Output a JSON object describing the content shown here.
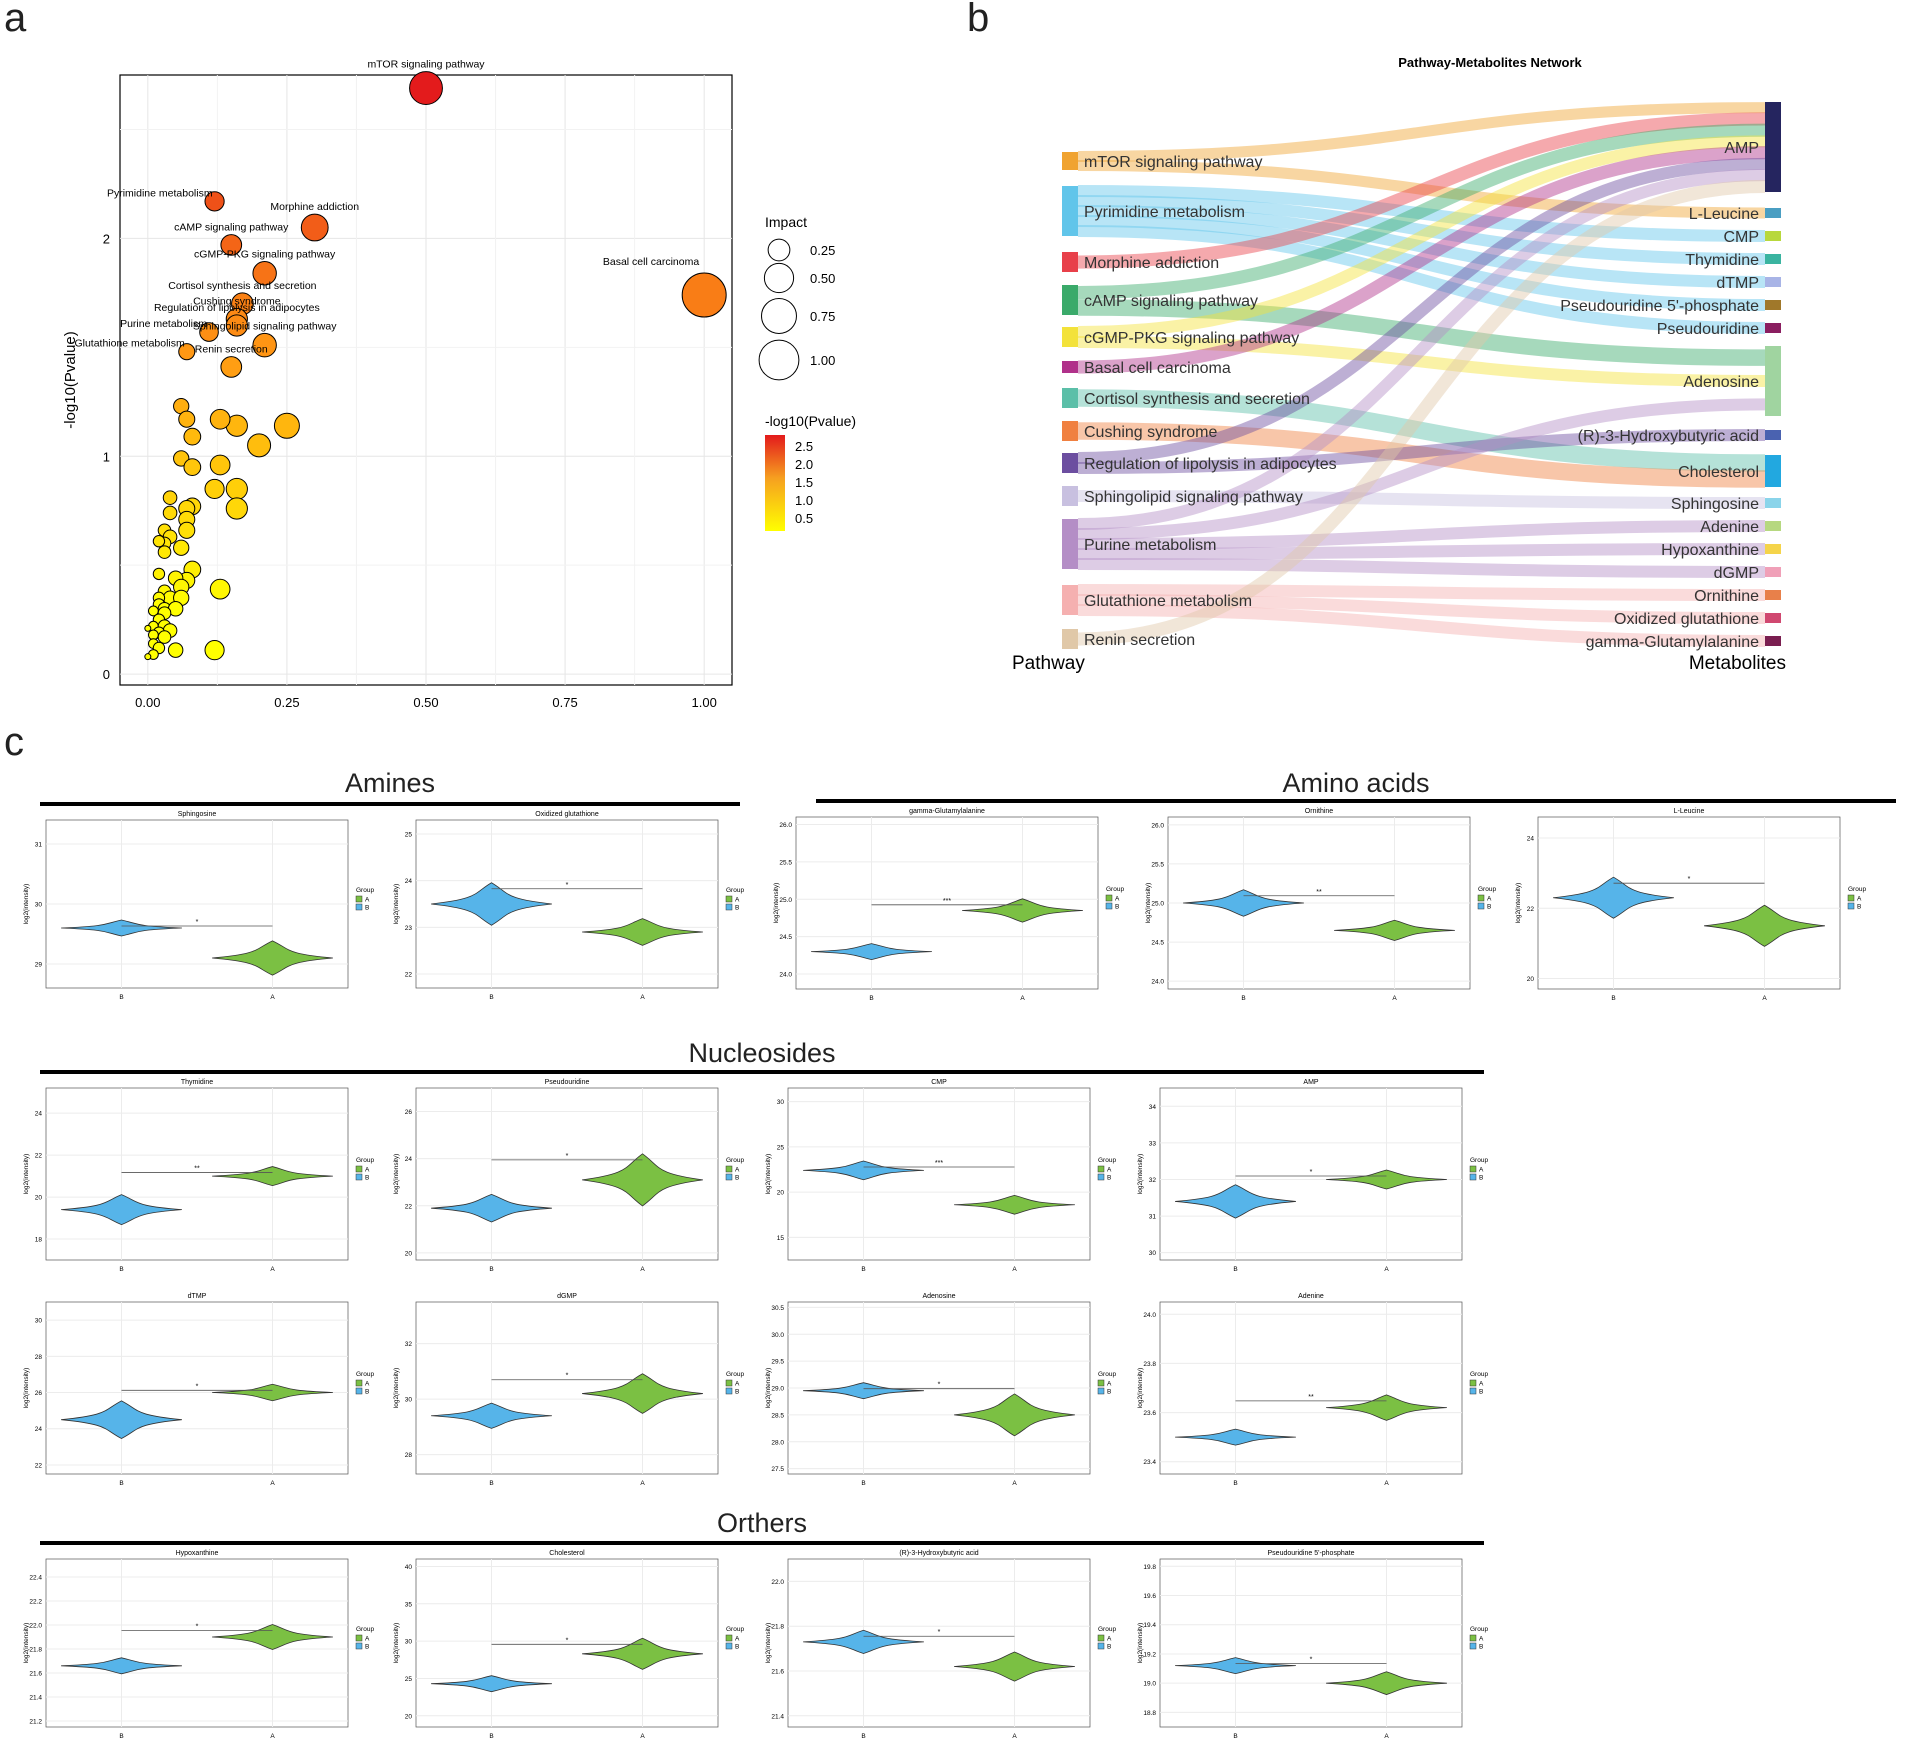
{
  "panels": {
    "a": {
      "letter": "a"
    },
    "b": {
      "letter": "b"
    },
    "c": {
      "letter": "c"
    }
  },
  "sections": {
    "amines": "Amines",
    "amino_acids": "Amino acids",
    "nucleosides": "Nucleosides",
    "others": "Orthers"
  },
  "colors": {
    "group_A": "#7bc043",
    "group_B": "#56b4e9",
    "impact_low": "#ffff00",
    "impact_high": "#e31a1c"
  },
  "chart_data": [
    {
      "id": "bubble",
      "type": "scatter",
      "xlabel": "Pathway Impact",
      "ylabel": "-log10(Pvalue)",
      "xlim": [
        -0.05,
        1.05
      ],
      "ylim": [
        -0.05,
        2.75
      ],
      "xticks": [
        "0.00",
        "0.25",
        "0.50",
        "0.75",
        "1.00"
      ],
      "yticks": [
        "0",
        "1",
        "2"
      ],
      "legend_size_title": "Impact",
      "legend_size_labels": [
        "0.25",
        "0.50",
        "0.75",
        "1.00"
      ],
      "legend_color_title": "-log10(Pvalue)",
      "legend_color_labels": [
        "2.5",
        "2.0",
        "1.5",
        "1.0",
        "0.5"
      ],
      "labeled_points": [
        {
          "label": "mTOR signaling pathway",
          "x": 0.5,
          "y": 2.69
        },
        {
          "label": "Basal cell carcinoma",
          "x": 1.0,
          "y": 1.74
        },
        {
          "label": "Morphine addiction",
          "x": 0.3,
          "y": 2.05
        },
        {
          "label": "Pyrimidine metabolism",
          "x": 0.12,
          "y": 2.17
        },
        {
          "label": "cAMP signaling pathway",
          "x": 0.15,
          "y": 1.97
        },
        {
          "label": "cGMP-PKG signaling pathway",
          "x": 0.21,
          "y": 1.84
        },
        {
          "label": "Cortisol synthesis and secretion",
          "x": 0.17,
          "y": 1.7
        },
        {
          "label": "Cushing syndrome",
          "x": 0.16,
          "y": 1.63
        },
        {
          "label": "Regulation of lipolysis in adipocytes",
          "x": 0.16,
          "y": 1.6
        },
        {
          "label": "Sphingolipid signaling pathway",
          "x": 0.21,
          "y": 1.51
        },
        {
          "label": "Purine metabolism",
          "x": 0.11,
          "y": 1.57
        },
        {
          "label": "Glutathione metabolism",
          "x": 0.07,
          "y": 1.48
        },
        {
          "label": "Renin secretion",
          "x": 0.15,
          "y": 1.41
        }
      ],
      "other_points": [
        {
          "x": 0.25,
          "y": 1.14
        },
        {
          "x": 0.2,
          "y": 1.05
        },
        {
          "x": 0.16,
          "y": 1.14
        },
        {
          "x": 0.13,
          "y": 1.17
        },
        {
          "x": 0.06,
          "y": 1.23
        },
        {
          "x": 0.07,
          "y": 1.17
        },
        {
          "x": 0.08,
          "y": 1.09
        },
        {
          "x": 0.13,
          "y": 0.96
        },
        {
          "x": 0.06,
          "y": 0.99
        },
        {
          "x": 0.08,
          "y": 0.95
        },
        {
          "x": 0.16,
          "y": 0.85
        },
        {
          "x": 0.12,
          "y": 0.85
        },
        {
          "x": 0.16,
          "y": 0.76
        },
        {
          "x": 0.08,
          "y": 0.77
        },
        {
          "x": 0.04,
          "y": 0.81
        },
        {
          "x": 0.07,
          "y": 0.76
        },
        {
          "x": 0.04,
          "y": 0.74
        },
        {
          "x": 0.07,
          "y": 0.71
        },
        {
          "x": 0.03,
          "y": 0.66
        },
        {
          "x": 0.07,
          "y": 0.66
        },
        {
          "x": 0.04,
          "y": 0.63
        },
        {
          "x": 0.03,
          "y": 0.6
        },
        {
          "x": 0.02,
          "y": 0.61
        },
        {
          "x": 0.06,
          "y": 0.58
        },
        {
          "x": 0.03,
          "y": 0.56
        },
        {
          "x": 0.08,
          "y": 0.48
        },
        {
          "x": 0.07,
          "y": 0.43
        },
        {
          "x": 0.02,
          "y": 0.46
        },
        {
          "x": 0.05,
          "y": 0.44
        },
        {
          "x": 0.06,
          "y": 0.4
        },
        {
          "x": 0.13,
          "y": 0.39
        },
        {
          "x": 0.03,
          "y": 0.38
        },
        {
          "x": 0.04,
          "y": 0.35
        },
        {
          "x": 0.06,
          "y": 0.35
        },
        {
          "x": 0.02,
          "y": 0.35
        },
        {
          "x": 0.02,
          "y": 0.32
        },
        {
          "x": 0.03,
          "y": 0.3
        },
        {
          "x": 0.05,
          "y": 0.3
        },
        {
          "x": 0.01,
          "y": 0.29
        },
        {
          "x": 0.03,
          "y": 0.28
        },
        {
          "x": 0.02,
          "y": 0.25
        },
        {
          "x": 0.01,
          "y": 0.22
        },
        {
          "x": 0.03,
          "y": 0.22
        },
        {
          "x": 0.04,
          "y": 0.2
        },
        {
          "x": 0.02,
          "y": 0.19
        },
        {
          "x": 0.0,
          "y": 0.21
        },
        {
          "x": 0.01,
          "y": 0.18
        },
        {
          "x": 0.03,
          "y": 0.17
        },
        {
          "x": 0.01,
          "y": 0.14
        },
        {
          "x": 0.02,
          "y": 0.12
        },
        {
          "x": 0.01,
          "y": 0.09
        },
        {
          "x": 0.0,
          "y": 0.08
        },
        {
          "x": 0.05,
          "y": 0.11
        },
        {
          "x": 0.12,
          "y": 0.11
        }
      ]
    },
    {
      "id": "sankey",
      "type": "sankey",
      "title": "Pathway-Metabolites Network",
      "left_axis_label": "Pathway",
      "right_axis_label": "Metabolites",
      "pathways": [
        {
          "name": "mTOR signaling pathway",
          "color": "#f0a330"
        },
        {
          "name": "Pyrimidine metabolism",
          "color": "#61c5ea"
        },
        {
          "name": "Morphine addiction",
          "color": "#e8404a"
        },
        {
          "name": "cAMP signaling pathway",
          "color": "#3aaa6a"
        },
        {
          "name": "cGMP-PKG signaling pathway",
          "color": "#f3e23a"
        },
        {
          "name": "Basal cell carcinoma",
          "color": "#b0318a"
        },
        {
          "name": "Cortisol synthesis and secretion",
          "color": "#5bbfa8"
        },
        {
          "name": "Cushing syndrome",
          "color": "#f08040"
        },
        {
          "name": "Regulation of lipolysis in adipocytes",
          "color": "#6c4ea0"
        },
        {
          "name": "Sphingolipid signaling pathway",
          "color": "#c8c0e0"
        },
        {
          "name": "Purine metabolism",
          "color": "#b48ec6"
        },
        {
          "name": "Glutathione metabolism",
          "color": "#f5b0b0"
        },
        {
          "name": "Renin secretion",
          "color": "#e0c8a8"
        }
      ],
      "metabolites": [
        {
          "name": "AMP",
          "color": "#25255f"
        },
        {
          "name": "L-Leucine",
          "color": "#4a9ec2"
        },
        {
          "name": "CMP",
          "color": "#b8d83c"
        },
        {
          "name": "Thymidine",
          "color": "#3ab4a0"
        },
        {
          "name": "dTMP",
          "color": "#a8b4e6"
        },
        {
          "name": "Pseudouridine 5'-phosphate",
          "color": "#a0782a"
        },
        {
          "name": "Pseudouridine",
          "color": "#8a1e60"
        },
        {
          "name": "Adenosine",
          "color": "#a0d4a0"
        },
        {
          "name": "(R)-3-Hydroxybutyric acid",
          "color": "#4a62b0"
        },
        {
          "name": "Cholesterol",
          "color": "#22a8e0"
        },
        {
          "name": "Sphingosine",
          "color": "#8ad4ea"
        },
        {
          "name": "Adenine",
          "color": "#b6d880"
        },
        {
          "name": "Hypoxanthine",
          "color": "#f5d44a"
        },
        {
          "name": "dGMP",
          "color": "#f0a0b8"
        },
        {
          "name": "Ornithine",
          "color": "#e8804a"
        },
        {
          "name": "Oxidized glutathione",
          "color": "#d04870"
        },
        {
          "name": "gamma-Glutamylalanine",
          "color": "#7a1e50"
        }
      ],
      "links": [
        [
          0,
          0
        ],
        [
          0,
          1
        ],
        [
          1,
          2
        ],
        [
          1,
          3
        ],
        [
          1,
          4
        ],
        [
          1,
          5
        ],
        [
          1,
          6
        ],
        [
          2,
          0
        ],
        [
          3,
          0
        ],
        [
          3,
          7
        ],
        [
          4,
          0
        ],
        [
          4,
          7
        ],
        [
          5,
          0
        ],
        [
          6,
          9
        ],
        [
          7,
          9
        ],
        [
          8,
          0
        ],
        [
          8,
          8
        ],
        [
          9,
          10
        ],
        [
          10,
          0
        ],
        [
          10,
          7
        ],
        [
          10,
          11
        ],
        [
          10,
          12
        ],
        [
          10,
          13
        ],
        [
          11,
          14
        ],
        [
          11,
          15
        ],
        [
          11,
          16
        ],
        [
          12,
          0
        ]
      ]
    },
    {
      "id": "v-sphingosine",
      "type": "violin",
      "title": "Sphingosine",
      "categories": [
        "B",
        "A"
      ],
      "ylabel": "log2(intensity)",
      "yticks": [
        "29",
        "30",
        "31"
      ],
      "ylim": [
        28.6,
        31.4
      ],
      "centers": [
        29.6,
        29.1
      ],
      "spread": [
        0.1,
        0.22
      ],
      "significance": "*",
      "legend_title": "Group",
      "legend_labels": [
        "A",
        "B"
      ]
    },
    {
      "id": "v-oxglut",
      "type": "violin",
      "title": "Oxidized glutathione",
      "categories": [
        "B",
        "A"
      ],
      "ylabel": "log2(intensity)",
      "yticks": [
        "22",
        "23",
        "24",
        "25"
      ],
      "ylim": [
        21.7,
        25.3
      ],
      "centers": [
        23.5,
        22.9
      ],
      "spread": [
        0.35,
        0.22
      ],
      "significance": "*",
      "legend_title": "Group",
      "legend_labels": [
        "A",
        "B"
      ]
    },
    {
      "id": "v-gglu",
      "type": "violin",
      "title": "gamma-Glutamylalanine",
      "categories": [
        "B",
        "A"
      ],
      "ylabel": "log2(intensity)",
      "yticks": [
        "24.0",
        "24.5",
        "25.0",
        "25.5",
        "26.0"
      ],
      "ylim": [
        23.8,
        26.1
      ],
      "centers": [
        24.3,
        24.85
      ],
      "spread": [
        0.05,
        0.12
      ],
      "significance": "***",
      "legend_title": "Group",
      "legend_labels": [
        "A",
        "B"
      ]
    },
    {
      "id": "v-ornithine",
      "type": "violin",
      "title": "Ornithine",
      "categories": [
        "B",
        "A"
      ],
      "ylabel": "log2(intensity)",
      "yticks": [
        "24.0",
        "24.5",
        "25.0",
        "25.5",
        "26.0"
      ],
      "ylim": [
        23.9,
        26.1
      ],
      "centers": [
        25.0,
        24.65
      ],
      "spread": [
        0.13,
        0.1
      ],
      "significance": "**",
      "legend_title": "Group",
      "legend_labels": [
        "A",
        "B"
      ]
    },
    {
      "id": "v-leucine",
      "type": "violin",
      "title": "L-Leucine",
      "categories": [
        "B",
        "A"
      ],
      "ylabel": "log2(intensity)",
      "yticks": [
        "20",
        "22",
        "24"
      ],
      "ylim": [
        19.7,
        24.6
      ],
      "centers": [
        22.3,
        21.5
      ],
      "spread": [
        0.45,
        0.45
      ],
      "significance": "*",
      "legend_title": "Group",
      "legend_labels": [
        "A",
        "B"
      ]
    },
    {
      "id": "v-thymidine",
      "type": "violin",
      "title": "Thymidine",
      "categories": [
        "B",
        "A"
      ],
      "ylabel": "log2(intensity)",
      "yticks": [
        "18",
        "20",
        "22",
        "24"
      ],
      "ylim": [
        17,
        25.2
      ],
      "centers": [
        19.4,
        21.0
      ],
      "spread": [
        0.55,
        0.35
      ],
      "significance": "**",
      "legend_title": "Group",
      "legend_labels": [
        "A",
        "B"
      ]
    },
    {
      "id": "v-pseudouridine",
      "type": "violin",
      "title": "Pseudouridine",
      "categories": [
        "B",
        "A"
      ],
      "ylabel": "log2(intensity)",
      "yticks": [
        "20",
        "22",
        "24",
        "26"
      ],
      "ylim": [
        19.7,
        27
      ],
      "centers": [
        21.9,
        23.1
      ],
      "spread": [
        0.45,
        0.85
      ],
      "significance": "*",
      "legend_title": "Group",
      "legend_labels": [
        "A",
        "B"
      ]
    },
    {
      "id": "v-cmp",
      "type": "violin",
      "title": "CMP",
      "categories": [
        "B",
        "A"
      ],
      "ylabel": "log2(intensity)",
      "yticks": [
        "15",
        "20",
        "25",
        "30"
      ],
      "ylim": [
        12.5,
        31.5
      ],
      "centers": [
        22.4,
        18.6
      ],
      "spread": [
        0.8,
        0.8
      ],
      "significance": "***",
      "legend_title": "Group",
      "legend_labels": [
        "A",
        "B"
      ]
    },
    {
      "id": "v-amp",
      "type": "violin",
      "title": "AMP",
      "categories": [
        "B",
        "A"
      ],
      "ylabel": "log2(intensity)",
      "yticks": [
        "30",
        "31",
        "32",
        "33",
        "34"
      ],
      "ylim": [
        29.8,
        34.5
      ],
      "centers": [
        31.4,
        32.0
      ],
      "spread": [
        0.35,
        0.2
      ],
      "significance": "*",
      "legend_title": "Group",
      "legend_labels": [
        "A",
        "B"
      ]
    },
    {
      "id": "v-dtmp",
      "type": "violin",
      "title": "dTMP",
      "categories": [
        "B",
        "A"
      ],
      "ylabel": "log2(intensity)",
      "yticks": [
        "22",
        "24",
        "26",
        "28",
        "30"
      ],
      "ylim": [
        21.5,
        31
      ],
      "centers": [
        24.5,
        26.0
      ],
      "spread": [
        0.8,
        0.35
      ],
      "significance": "*",
      "legend_title": "Group",
      "legend_labels": [
        "A",
        "B"
      ]
    },
    {
      "id": "v-dgmp",
      "type": "violin",
      "title": "dGMP",
      "categories": [
        "B",
        "A"
      ],
      "ylabel": "log2(intensity)",
      "yticks": [
        "28",
        "30",
        "32"
      ],
      "ylim": [
        27.3,
        33.5
      ],
      "centers": [
        29.4,
        30.2
      ],
      "spread": [
        0.35,
        0.55
      ],
      "significance": "*",
      "legend_title": "Group",
      "legend_labels": [
        "A",
        "B"
      ]
    },
    {
      "id": "v-adenosine",
      "type": "violin",
      "title": "Adenosine",
      "categories": [
        "B",
        "A"
      ],
      "ylabel": "log2(intensity)",
      "yticks": [
        "27.5",
        "28.0",
        "28.5",
        "29.0",
        "29.5",
        "30.0",
        "30.5"
      ],
      "ylim": [
        27.4,
        30.6
      ],
      "centers": [
        28.95,
        28.5
      ],
      "spread": [
        0.08,
        0.3
      ],
      "significance": "*",
      "legend_title": "Group",
      "legend_labels": [
        "A",
        "B"
      ]
    },
    {
      "id": "v-adenine",
      "type": "violin",
      "title": "Adenine",
      "categories": [
        "B",
        "A"
      ],
      "ylabel": "log2(intensity)",
      "yticks": [
        "23.4",
        "23.6",
        "23.8",
        "24.0"
      ],
      "ylim": [
        23.35,
        24.05
      ],
      "centers": [
        23.5,
        23.62
      ],
      "spread": [
        0.015,
        0.04
      ],
      "significance": "**",
      "legend_title": "Group",
      "legend_labels": [
        "A",
        "B"
      ]
    },
    {
      "id": "v-hypox",
      "type": "violin",
      "title": "Hypoxanthine",
      "categories": [
        "B",
        "A"
      ],
      "ylabel": "log2(intensity)",
      "yticks": [
        "21.2",
        "21.4",
        "21.6",
        "21.8",
        "22.0",
        "22.2",
        "22.4"
      ],
      "ylim": [
        21.15,
        22.55
      ],
      "centers": [
        21.66,
        21.9
      ],
      "spread": [
        0.04,
        0.08
      ],
      "significance": "*",
      "legend_title": "Group",
      "legend_labels": [
        "A",
        "B"
      ]
    },
    {
      "id": "v-cholesterol",
      "type": "violin",
      "title": "Cholesterol",
      "categories": [
        "B",
        "A"
      ],
      "ylabel": "log2(intensity)",
      "yticks": [
        "20",
        "25",
        "30",
        "35",
        "40"
      ],
      "ylim": [
        18.5,
        41
      ],
      "centers": [
        24.3,
        28.3
      ],
      "spread": [
        0.8,
        1.6
      ],
      "significance": "*",
      "legend_title": "Group",
      "legend_labels": [
        "A",
        "B"
      ]
    },
    {
      "id": "v-r3hba",
      "type": "violin",
      "title": "(R)-3-Hydroxybutyric acid",
      "categories": [
        "B",
        "A"
      ],
      "ylabel": "log2(intensity)",
      "yticks": [
        "21.4",
        "21.6",
        "21.8",
        "22.0"
      ],
      "ylim": [
        21.35,
        22.1
      ],
      "centers": [
        21.73,
        21.62
      ],
      "spread": [
        0.04,
        0.05
      ],
      "significance": "*",
      "legend_title": "Group",
      "legend_labels": [
        "A",
        "B"
      ]
    },
    {
      "id": "v-pu5p",
      "type": "violin",
      "title": "Pseudouridine 5'-phosphate",
      "categories": [
        "B",
        "A"
      ],
      "ylabel": "log2(intensity)",
      "yticks": [
        "18.8",
        "19.0",
        "19.2",
        "19.4",
        "19.6",
        "19.8"
      ],
      "ylim": [
        18.7,
        19.85
      ],
      "centers": [
        19.12,
        19.0
      ],
      "spread": [
        0.04,
        0.06
      ],
      "significance": "*",
      "legend_title": "Group",
      "legend_labels": [
        "A",
        "B"
      ]
    }
  ]
}
